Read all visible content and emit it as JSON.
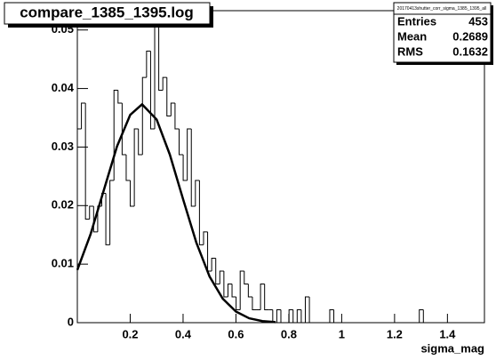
{
  "chart_data": {
    "type": "histogram",
    "title": "compare_1385_1395.log",
    "x_label": "sigma_mag",
    "color": "#000000",
    "bins": [
      0,
      0.0154,
      0.0308,
      0.0462,
      0.0616,
      0.077,
      0.0924,
      0.1078,
      0.1232,
      0.1386,
      0.154,
      0.1694,
      0.1848,
      0.2002,
      0.2156,
      0.231,
      0.2464,
      0.2618,
      0.2772,
      0.2926,
      0.308,
      0.3234,
      0.3388,
      0.3542,
      0.3696,
      0.385,
      0.4004,
      0.4158,
      0.4312,
      0.4466,
      0.462,
      0.4774,
      0.4928,
      0.5082,
      0.5236,
      0.539,
      0.5544,
      0.5698,
      0.5852,
      0.6006,
      0.616,
      0.6314,
      0.6468,
      0.6622,
      0.6776,
      0.693,
      0.7084,
      0.7238,
      0.7392,
      0.7546,
      0.77,
      0.7854,
      0.8008,
      0.8162,
      0.8316,
      0.847,
      0.8624,
      0.8778,
      0.8932,
      0.9086,
      0.924,
      0.9394,
      0.9548,
      0.9702,
      0.9856,
      1.001,
      1.0164,
      1.0318,
      1.0472,
      1.0626,
      1.078,
      1.0934,
      1.1088,
      1.1242,
      1.1396,
      1.155,
      1.1704,
      1.1858,
      1.2012,
      1.2166,
      1.232,
      1.2474,
      1.2628,
      1.2782,
      1.2936,
      1.309,
      1.3244,
      1.3398,
      1.3552,
      1.3706,
      1.386,
      1.4014,
      1.4168,
      1.4322,
      1.4476,
      1.463,
      1.4784,
      1.4938,
      1.5092,
      1.5246,
      1.54
    ],
    "values": [
      0.0331,
      0.0375,
      0.0177,
      0.0199,
      0.0155,
      0.0199,
      0.0221,
      0.0133,
      0.0243,
      0.0397,
      0.0375,
      0.0287,
      0.0243,
      0.0199,
      0.0331,
      0.0287,
      0.0419,
      0.0464,
      0.0331,
      0.0508,
      0.0397,
      0.0419,
      0.0353,
      0.0375,
      0.0331,
      0.0287,
      0.0243,
      0.0331,
      0.0199,
      0.0243,
      0.0133,
      0.0155,
      0.0088,
      0.011,
      0.0066,
      0.0088,
      0.0044,
      0.0066,
      0.0044,
      0.0022,
      0.0088,
      0.0066,
      0.0044,
      0.0022,
      0.0022,
      0.0066,
      0.0022,
      0.0022,
      0,
      0.0022,
      0,
      0,
      0.0022,
      0,
      0.0022,
      0,
      0.0044,
      0,
      0,
      0,
      0,
      0,
      0.0022,
      0,
      0,
      0,
      0,
      0,
      0,
      0,
      0,
      0,
      0,
      0,
      0,
      0,
      0,
      0,
      0,
      0,
      0,
      0,
      0,
      0,
      0.0022,
      0,
      0,
      0,
      0,
      0,
      0,
      0,
      0,
      0,
      0,
      0,
      0,
      0,
      0,
      0
    ],
    "fit": {
      "color": "#000000",
      "x": [
        0,
        0.05,
        0.1,
        0.15,
        0.2,
        0.245,
        0.3,
        0.35,
        0.4,
        0.45,
        0.5,
        0.55,
        0.6,
        0.65,
        0.7,
        0.75
      ],
      "values": [
        0.009,
        0.0151,
        0.0226,
        0.0301,
        0.0355,
        0.0373,
        0.0347,
        0.0287,
        0.0211,
        0.0137,
        0.0079,
        0.0041,
        0.0019,
        0.00075,
        0.00027,
        0.0001
      ]
    },
    "xlim": [
      0,
      1.54
    ],
    "xticks": [
      0.2,
      0.4,
      0.6,
      0.8,
      1,
      1.2,
      1.4
    ],
    "ylim": [
      0,
      0.0533
    ],
    "yticks": [
      0,
      0.01,
      0.02,
      0.03,
      0.04,
      0.05
    ],
    "stats": {
      "title": "20170413shutter_corr_sigma_1385_1395_all",
      "rows": [
        {
          "label": "Entries",
          "value": 453
        },
        {
          "label": "Mean",
          "value": 0.2689
        },
        {
          "label": "RMS",
          "value": 0.1632
        }
      ]
    }
  }
}
